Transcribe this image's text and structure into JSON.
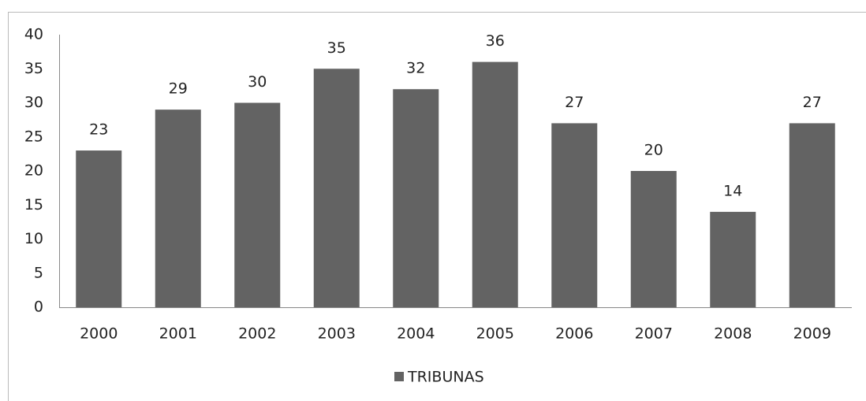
{
  "chart_data": {
    "type": "bar",
    "categories": [
      "2000",
      "2001",
      "2002",
      "2003",
      "2004",
      "2005",
      "2006",
      "2007",
      "2008",
      "2009"
    ],
    "series": [
      {
        "name": "TRIBUNAS",
        "color": "#636363",
        "values": [
          23,
          29,
          30,
          35,
          32,
          36,
          27,
          20,
          14,
          27
        ]
      }
    ],
    "ylim": [
      0,
      40
    ],
    "yticks": [
      0,
      5,
      10,
      15,
      20,
      25,
      30,
      35,
      40
    ],
    "grid": false,
    "legend": "bottom",
    "data_labels": true
  }
}
